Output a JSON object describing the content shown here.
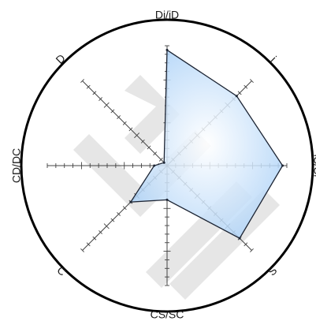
{
  "chart_data": {
    "type": "radar",
    "title": "",
    "axes": [
      {
        "name": "Di/iD",
        "label": "Di/iD"
      },
      {
        "name": "i",
        "label": "i"
      },
      {
        "name": "iS/Si",
        "label": "iS/Si"
      },
      {
        "name": "S",
        "label": "S"
      },
      {
        "name": "CS/SC",
        "label": "CS/SC"
      },
      {
        "name": "C",
        "label": "C"
      },
      {
        "name": "CD/DC",
        "label": "CD/DC"
      },
      {
        "name": "D",
        "label": "D"
      }
    ],
    "scale": {
      "min": 0,
      "max": 28,
      "tick_step": 2
    },
    "series": [
      {
        "values": [
          27,
          23,
          27,
          24,
          8,
          12,
          3,
          1
        ],
        "fill_color": "#bcdcff",
        "stroke_color": "#1c2433"
      }
    ],
    "grid": true,
    "watermark": "DISC"
  }
}
